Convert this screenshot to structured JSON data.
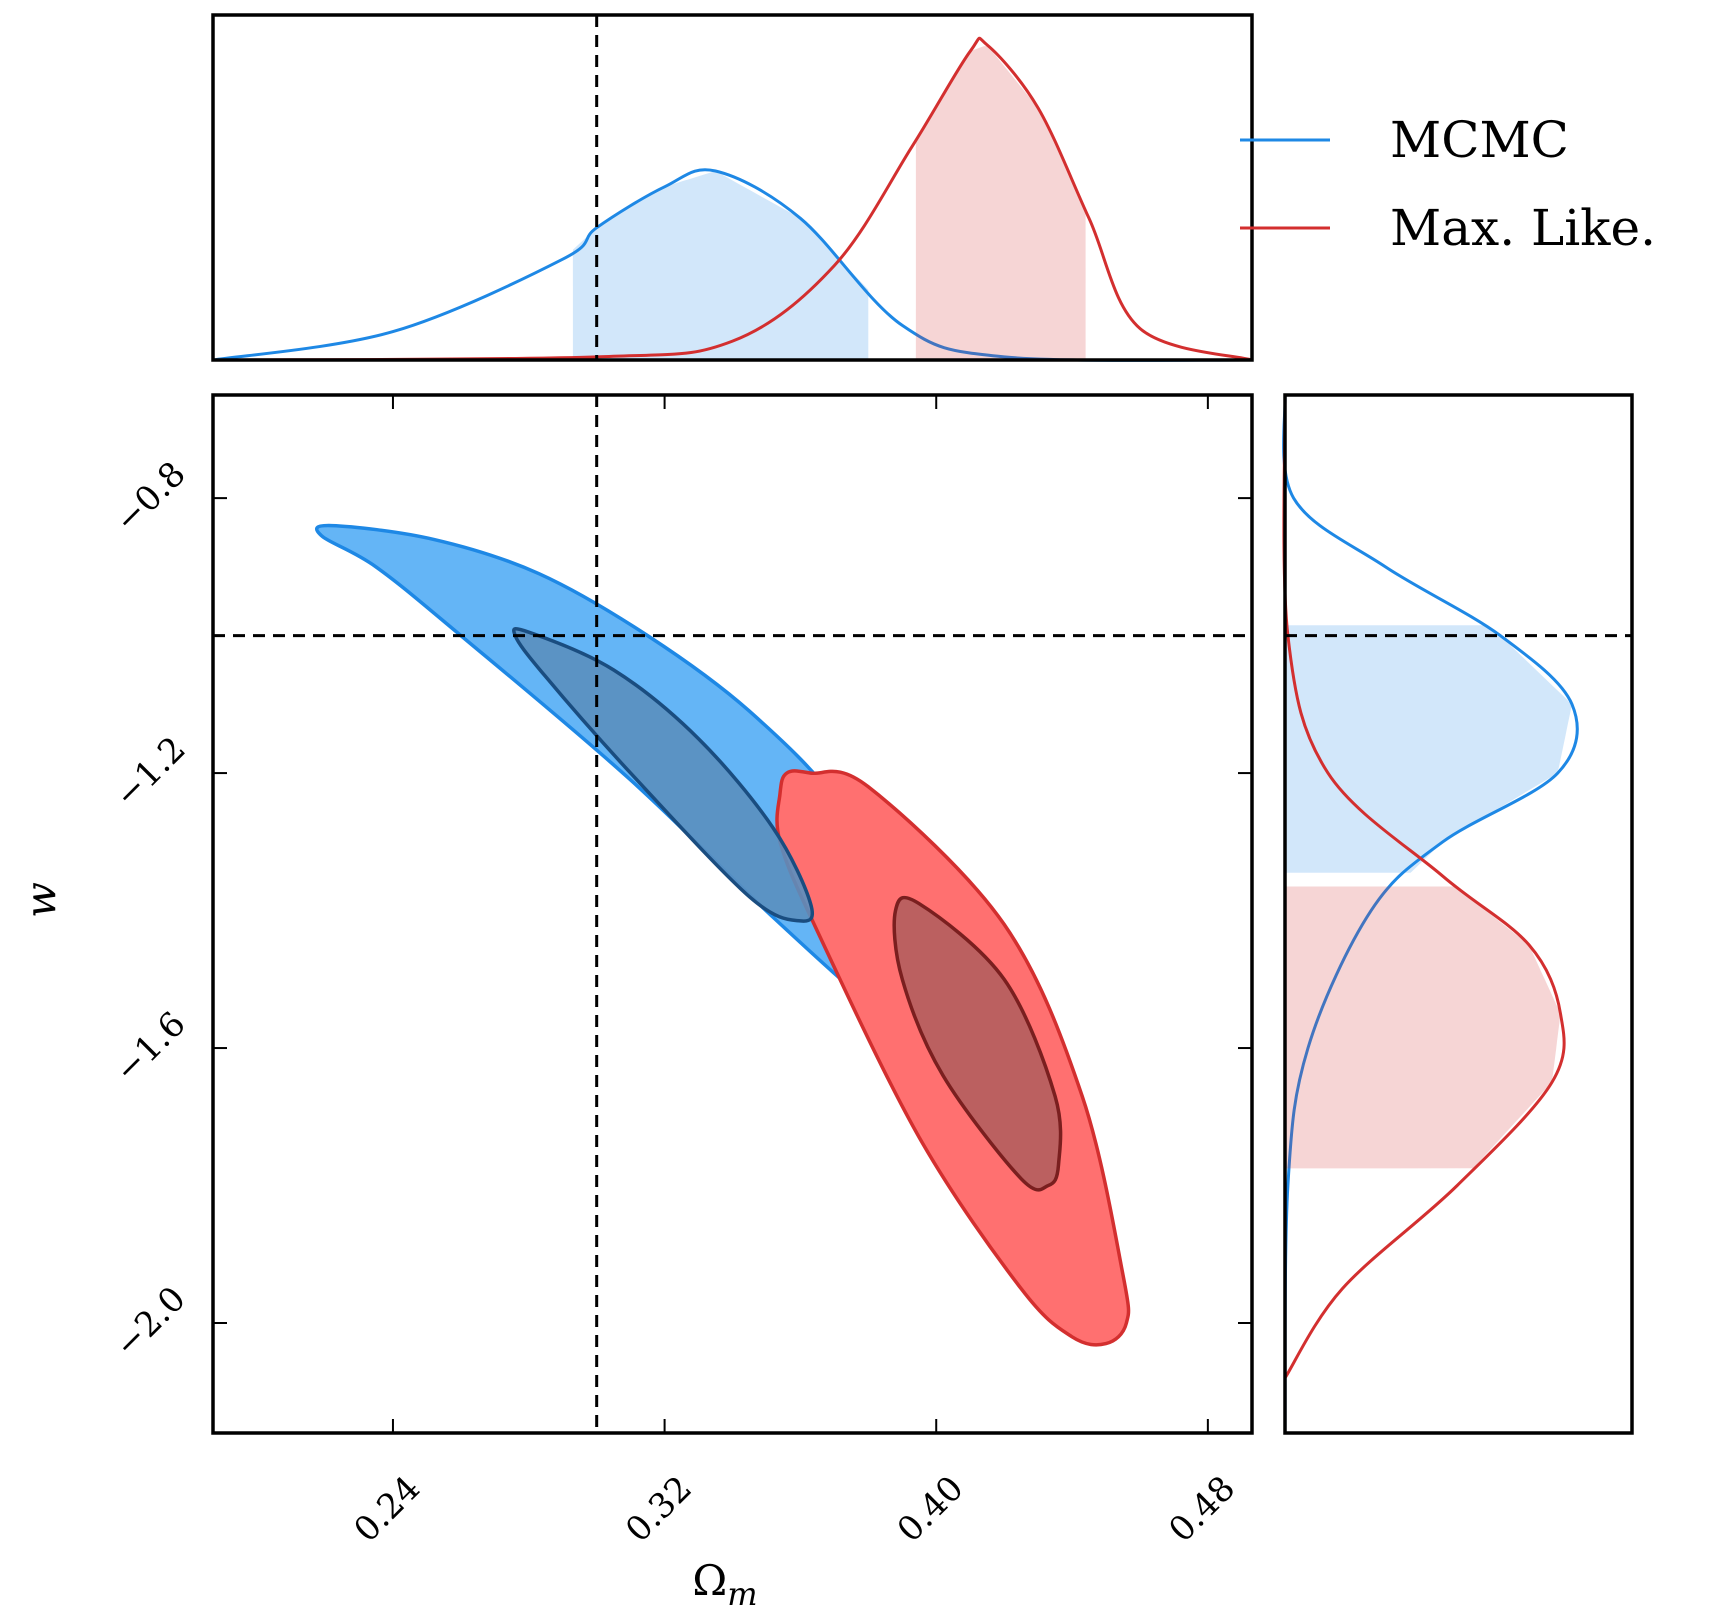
{
  "chart_data": {
    "type": "scatter",
    "subtype": "corner-plot-2d-confidence-contours",
    "xlabel": "Ω",
    "xlabel_sub": "m",
    "ylabel": "w",
    "xlim": [
      0.187,
      0.493
    ],
    "ylim": [
      -2.16,
      -0.65
    ],
    "x_ticks": [
      0.24,
      0.32,
      0.4,
      0.48
    ],
    "x_tick_labels": [
      "0.24",
      "0.32",
      "0.40",
      "0.48"
    ],
    "y_ticks": [
      -0.8,
      -1.2,
      -1.6,
      -2.0
    ],
    "y_tick_labels": [
      "−0.8",
      "−1.2",
      "−1.6",
      "−2.0"
    ],
    "reference": {
      "omega_m": 0.3,
      "w": -1.0
    },
    "legend": {
      "position": "top-right"
    },
    "grid": false,
    "series": [
      {
        "name": "MCMC",
        "color": "#1e88e5",
        "fill_outer": "#64b5f6",
        "fill_inner": "#5a8fbf",
        "contour_outer": [
          [
            0.219,
            -0.855
          ],
          [
            0.222,
            -0.84
          ],
          [
            0.252,
            -0.86
          ],
          [
            0.283,
            -0.91
          ],
          [
            0.315,
            -1.0
          ],
          [
            0.345,
            -1.11
          ],
          [
            0.372,
            -1.25
          ],
          [
            0.39,
            -1.43
          ],
          [
            0.398,
            -1.535
          ],
          [
            0.395,
            -1.565
          ],
          [
            0.383,
            -1.545
          ],
          [
            0.352,
            -1.41
          ],
          [
            0.31,
            -1.21
          ],
          [
            0.26,
            -1.0
          ],
          [
            0.235,
            -0.9
          ]
        ],
        "contour_inner": [
          [
            0.276,
            -1.0
          ],
          [
            0.28,
            -0.995
          ],
          [
            0.305,
            -1.05
          ],
          [
            0.33,
            -1.15
          ],
          [
            0.352,
            -1.28
          ],
          [
            0.363,
            -1.39
          ],
          [
            0.36,
            -1.415
          ],
          [
            0.345,
            -1.38
          ],
          [
            0.31,
            -1.2
          ],
          [
            0.285,
            -1.06
          ]
        ],
        "marginal_x": [
          [
            0.187,
            0.0
          ],
          [
            0.24,
            0.09
          ],
          [
            0.29,
            0.32
          ],
          [
            0.3,
            0.42
          ],
          [
            0.32,
            0.55
          ],
          [
            0.335,
            0.6
          ],
          [
            0.36,
            0.45
          ],
          [
            0.39,
            0.11
          ],
          [
            0.42,
            0.01
          ],
          [
            0.493,
            0.0
          ]
        ],
        "marginal_x_interval": [
          0.293,
          0.38
        ],
        "marginal_y": [
          [
            -0.65,
            0.0
          ],
          [
            -0.8,
            0.03
          ],
          [
            -0.9,
            0.35
          ],
          [
            -1.0,
            0.75
          ],
          [
            -1.1,
            1.0
          ],
          [
            -1.2,
            0.95
          ],
          [
            -1.3,
            0.55
          ],
          [
            -1.4,
            0.3
          ],
          [
            -1.6,
            0.08
          ],
          [
            -1.8,
            0.01
          ],
          [
            -2.16,
            0.0
          ]
        ],
        "marginal_y_interval": [
          -0.985,
          -1.345
        ]
      },
      {
        "name": "Max. Like.",
        "color": "#d32f2f",
        "fill_outer": "#ff7070",
        "fill_inner": "#b45e5e",
        "contour_outer": [
          [
            0.356,
            -1.2
          ],
          [
            0.363,
            -1.2
          ],
          [
            0.38,
            -1.22
          ],
          [
            0.42,
            -1.42
          ],
          [
            0.443,
            -1.67
          ],
          [
            0.455,
            -1.93
          ],
          [
            0.456,
            -2.0
          ],
          [
            0.45,
            -2.03
          ],
          [
            0.44,
            -2.02
          ],
          [
            0.425,
            -1.95
          ],
          [
            0.395,
            -1.73
          ],
          [
            0.365,
            -1.43
          ],
          [
            0.354,
            -1.3
          ],
          [
            0.354,
            -1.23
          ]
        ],
        "contour_inner": [
          [
            0.388,
            -1.4
          ],
          [
            0.395,
            -1.39
          ],
          [
            0.42,
            -1.5
          ],
          [
            0.435,
            -1.67
          ],
          [
            0.436,
            -1.77
          ],
          [
            0.433,
            -1.8
          ],
          [
            0.425,
            -1.79
          ],
          [
            0.402,
            -1.64
          ],
          [
            0.39,
            -1.5
          ]
        ],
        "marginal_x": [
          [
            0.187,
            0.0
          ],
          [
            0.3,
            0.01
          ],
          [
            0.34,
            0.06
          ],
          [
            0.37,
            0.3
          ],
          [
            0.393,
            0.68
          ],
          [
            0.41,
            0.98
          ],
          [
            0.415,
            1.0
          ],
          [
            0.43,
            0.8
          ],
          [
            0.445,
            0.45
          ],
          [
            0.46,
            0.1
          ],
          [
            0.493,
            0.0
          ]
        ],
        "marginal_x_interval": [
          0.394,
          0.444
        ],
        "marginal_y": [
          [
            -0.65,
            0.0
          ],
          [
            -1.0,
            0.01
          ],
          [
            -1.2,
            0.15
          ],
          [
            -1.35,
            0.55
          ],
          [
            -1.45,
            0.85
          ],
          [
            -1.55,
            0.96
          ],
          [
            -1.65,
            0.93
          ],
          [
            -1.8,
            0.6
          ],
          [
            -1.95,
            0.2
          ],
          [
            -2.08,
            0.0
          ]
        ],
        "marginal_y_interval": [
          -1.365,
          -1.775
        ]
      }
    ]
  }
}
